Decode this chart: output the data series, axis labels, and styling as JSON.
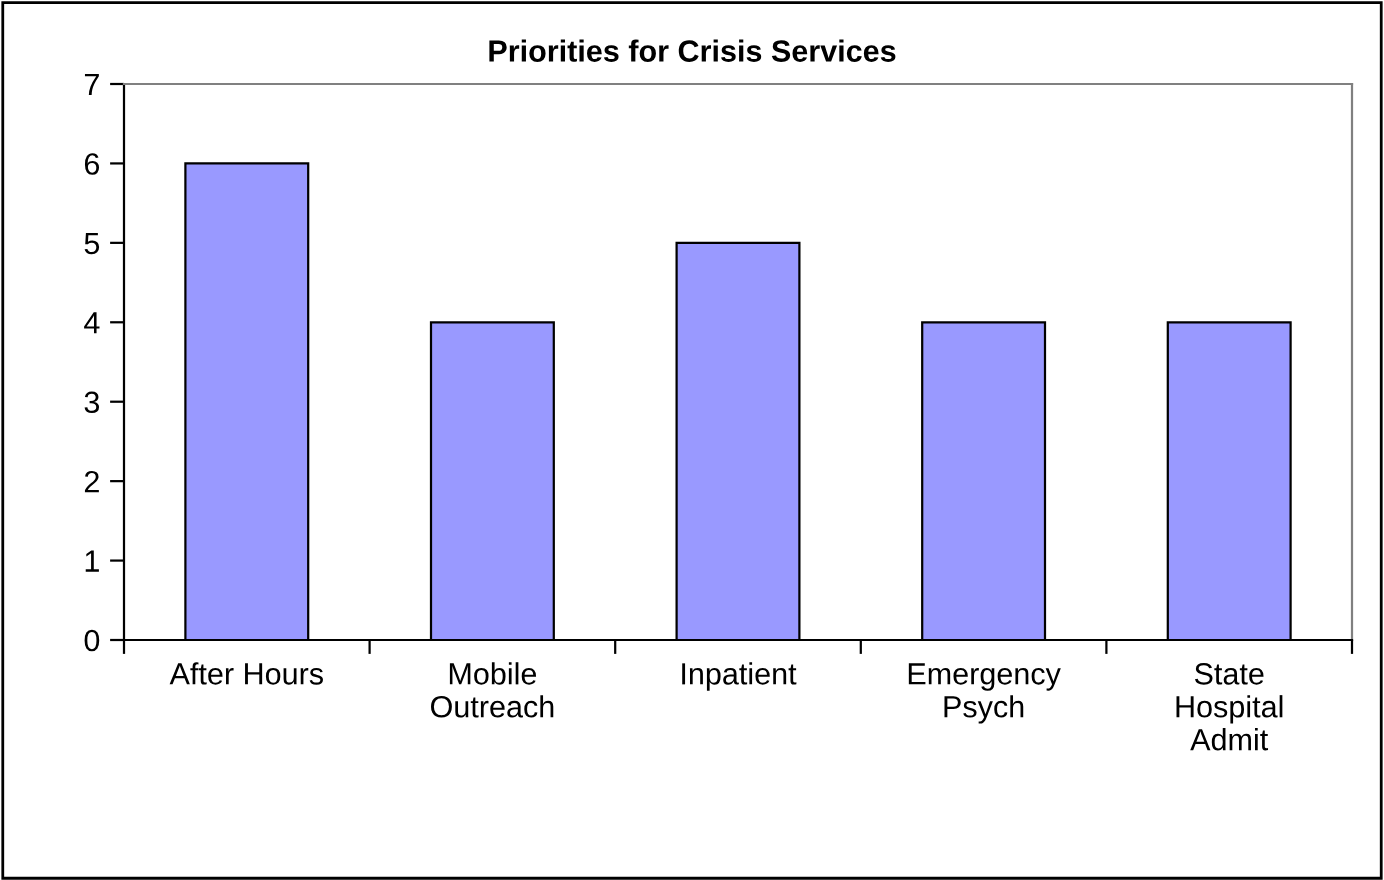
{
  "chart_data": {
    "type": "bar",
    "title": "Priorities for Crisis Services",
    "categories": [
      "After Hours",
      "Mobile Outreach",
      "Inpatient",
      "Emergency Psych",
      "State Hospital Admit"
    ],
    "values": [
      6,
      4,
      5,
      4,
      4
    ],
    "color": "#9999ff",
    "ylim": [
      0,
      7
    ],
    "yticks": [
      0,
      1,
      2,
      3,
      4,
      5,
      6,
      7
    ],
    "grid": false,
    "legend": false
  }
}
